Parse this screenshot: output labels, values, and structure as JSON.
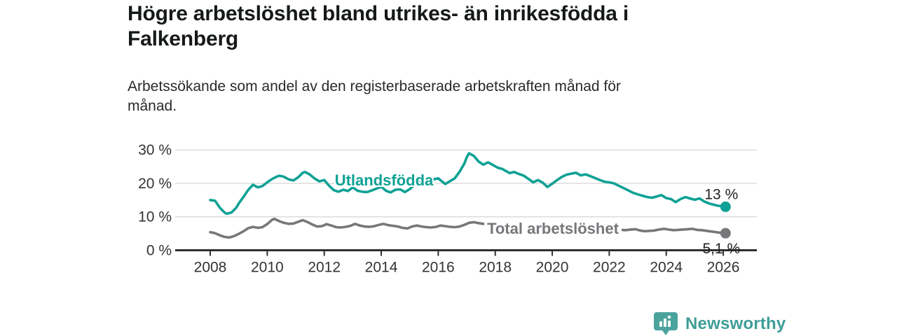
{
  "header": {
    "title": "Högre arbetslöshet bland utrikes- än inrikesfödda i\nFalkenberg",
    "subtitle": "Arbetssökande som andel av den registerbaserade arbetskraften månad för\nmånad."
  },
  "footer": {
    "brand": "Newsworthy",
    "brand_color": "#3f9e97",
    "icon_color": "#4aa39d",
    "icon": "newsworthy-bar-chart-bubble-icon"
  },
  "chart_data": {
    "type": "line",
    "title": "Högre arbetslöshet bland utrikes- än inrikesfödda i Falkenberg",
    "subtitle": "Arbetssökande som andel av den registerbaserade arbetskraften månad för månad.",
    "xlabel": "",
    "ylabel": "",
    "x_axis": {
      "ticks": [
        2008,
        2010,
        2012,
        2014,
        2016,
        2018,
        2020,
        2022,
        2024,
        2026
      ],
      "tick_labels": [
        "2008",
        "2010",
        "2012",
        "2014",
        "2016",
        "2018",
        "2020",
        "2022",
        "2024",
        "2026"
      ],
      "range": [
        2006.8,
        2027.2
      ]
    },
    "y_axis": {
      "ticks": [
        0,
        10,
        20,
        30
      ],
      "tick_labels": [
        "0 %",
        "10 %",
        "20 %",
        "30 %"
      ],
      "range": [
        0,
        30
      ],
      "grid": true
    },
    "colors": {
      "axis": "#2f2f2f",
      "grid": "#d9d9d9",
      "tick_text": "#333333",
      "annotation_text": "#222222"
    },
    "series": [
      {
        "name": "Utlandsfödda",
        "color": "#0fa195",
        "end_label": "13 %",
        "points": [
          [
            2008.0,
            15.0
          ],
          [
            2008.17,
            14.8
          ],
          [
            2008.33,
            12.8
          ],
          [
            2008.5,
            11.3
          ],
          [
            2008.58,
            10.9
          ],
          [
            2008.75,
            11.3
          ],
          [
            2008.92,
            12.8
          ],
          [
            2009.0,
            14.0
          ],
          [
            2009.17,
            16.0
          ],
          [
            2009.33,
            18.0
          ],
          [
            2009.5,
            19.6
          ],
          [
            2009.67,
            18.8
          ],
          [
            2009.83,
            19.2
          ],
          [
            2010.0,
            20.3
          ],
          [
            2010.17,
            21.3
          ],
          [
            2010.33,
            22.0
          ],
          [
            2010.42,
            22.3
          ],
          [
            2010.58,
            22.0
          ],
          [
            2010.75,
            21.2
          ],
          [
            2010.92,
            20.9
          ],
          [
            2011.08,
            21.8
          ],
          [
            2011.25,
            23.2
          ],
          [
            2011.33,
            23.4
          ],
          [
            2011.5,
            22.6
          ],
          [
            2011.67,
            21.4
          ],
          [
            2011.83,
            20.6
          ],
          [
            2012.0,
            21.0
          ],
          [
            2012.17,
            19.3
          ],
          [
            2012.33,
            18.0
          ],
          [
            2012.5,
            17.5
          ],
          [
            2012.67,
            18.1
          ],
          [
            2012.83,
            17.7
          ],
          [
            2013.0,
            18.8
          ],
          [
            2013.17,
            17.8
          ],
          [
            2013.33,
            17.5
          ],
          [
            2013.5,
            17.4
          ],
          [
            2013.67,
            17.9
          ],
          [
            2013.83,
            18.4
          ],
          [
            2014.0,
            19.0
          ],
          [
            2014.17,
            17.8
          ],
          [
            2014.33,
            17.3
          ],
          [
            2014.5,
            18.1
          ],
          [
            2014.67,
            18.2
          ],
          [
            2014.83,
            17.4
          ],
          [
            2015.0,
            18.3
          ],
          [
            2015.17,
            19.6
          ],
          [
            2015.33,
            20.4
          ],
          [
            2015.5,
            20.9
          ],
          [
            2015.67,
            21.0
          ],
          [
            2015.83,
            21.2
          ],
          [
            2016.0,
            21.5
          ],
          [
            2016.17,
            20.3
          ],
          [
            2016.25,
            19.8
          ],
          [
            2016.42,
            20.7
          ],
          [
            2016.58,
            21.5
          ],
          [
            2016.75,
            23.5
          ],
          [
            2016.92,
            26.0
          ],
          [
            2017.0,
            27.8
          ],
          [
            2017.08,
            29.0
          ],
          [
            2017.25,
            28.2
          ],
          [
            2017.42,
            26.5
          ],
          [
            2017.58,
            25.6
          ],
          [
            2017.75,
            26.3
          ],
          [
            2017.92,
            25.5
          ],
          [
            2018.08,
            24.7
          ],
          [
            2018.25,
            24.3
          ],
          [
            2018.5,
            23.1
          ],
          [
            2018.67,
            23.4
          ],
          [
            2018.83,
            22.8
          ],
          [
            2019.0,
            22.3
          ],
          [
            2019.17,
            21.3
          ],
          [
            2019.33,
            20.3
          ],
          [
            2019.5,
            21.0
          ],
          [
            2019.67,
            20.2
          ],
          [
            2019.83,
            18.9
          ],
          [
            2020.0,
            19.9
          ],
          [
            2020.17,
            21.0
          ],
          [
            2020.33,
            21.9
          ],
          [
            2020.5,
            22.6
          ],
          [
            2020.67,
            22.9
          ],
          [
            2020.83,
            23.2
          ],
          [
            2021.0,
            22.4
          ],
          [
            2021.17,
            22.7
          ],
          [
            2021.33,
            22.2
          ],
          [
            2021.5,
            21.6
          ],
          [
            2021.67,
            21.0
          ],
          [
            2021.83,
            20.5
          ],
          [
            2022.0,
            20.3
          ],
          [
            2022.17,
            20.0
          ],
          [
            2022.33,
            19.3
          ],
          [
            2022.5,
            18.6
          ],
          [
            2022.67,
            17.9
          ],
          [
            2022.83,
            17.2
          ],
          [
            2023.0,
            16.7
          ],
          [
            2023.17,
            16.3
          ],
          [
            2023.33,
            15.9
          ],
          [
            2023.5,
            15.7
          ],
          [
            2023.67,
            16.1
          ],
          [
            2023.83,
            16.5
          ],
          [
            2024.0,
            15.6
          ],
          [
            2024.17,
            15.3
          ],
          [
            2024.33,
            14.4
          ],
          [
            2024.5,
            15.3
          ],
          [
            2024.67,
            15.9
          ],
          [
            2024.83,
            15.5
          ],
          [
            2025.0,
            15.1
          ],
          [
            2025.17,
            15.5
          ],
          [
            2025.33,
            14.6
          ],
          [
            2025.5,
            14.0
          ],
          [
            2025.67,
            13.6
          ],
          [
            2025.83,
            13.3
          ],
          [
            2026.0,
            13.1
          ],
          [
            2026.08,
            13.0
          ]
        ]
      },
      {
        "name": "Total arbetslöshet",
        "color": "#77777b",
        "end_label": "5,1 %",
        "points": [
          [
            2008.0,
            5.4
          ],
          [
            2008.17,
            5.1
          ],
          [
            2008.33,
            4.5
          ],
          [
            2008.5,
            4.0
          ],
          [
            2008.67,
            3.8
          ],
          [
            2008.83,
            4.2
          ],
          [
            2009.0,
            4.9
          ],
          [
            2009.17,
            5.7
          ],
          [
            2009.33,
            6.6
          ],
          [
            2009.5,
            7.0
          ],
          [
            2009.67,
            6.7
          ],
          [
            2009.83,
            6.9
          ],
          [
            2010.0,
            7.8
          ],
          [
            2010.17,
            9.1
          ],
          [
            2010.25,
            9.4
          ],
          [
            2010.42,
            8.7
          ],
          [
            2010.58,
            8.2
          ],
          [
            2010.75,
            7.9
          ],
          [
            2010.92,
            8.0
          ],
          [
            2011.08,
            8.5
          ],
          [
            2011.25,
            9.0
          ],
          [
            2011.42,
            8.4
          ],
          [
            2011.58,
            7.7
          ],
          [
            2011.75,
            7.1
          ],
          [
            2011.92,
            7.2
          ],
          [
            2012.08,
            7.8
          ],
          [
            2012.25,
            7.4
          ],
          [
            2012.42,
            6.9
          ],
          [
            2012.58,
            6.8
          ],
          [
            2012.75,
            7.0
          ],
          [
            2012.92,
            7.3
          ],
          [
            2013.08,
            7.9
          ],
          [
            2013.25,
            7.4
          ],
          [
            2013.42,
            7.1
          ],
          [
            2013.58,
            7.0
          ],
          [
            2013.75,
            7.2
          ],
          [
            2013.92,
            7.6
          ],
          [
            2014.08,
            7.9
          ],
          [
            2014.25,
            7.5
          ],
          [
            2014.42,
            7.3
          ],
          [
            2014.58,
            7.1
          ],
          [
            2014.75,
            6.7
          ],
          [
            2014.92,
            6.5
          ],
          [
            2015.08,
            7.1
          ],
          [
            2015.25,
            7.4
          ],
          [
            2015.42,
            7.1
          ],
          [
            2015.58,
            6.9
          ],
          [
            2015.75,
            6.8
          ],
          [
            2015.92,
            7.0
          ],
          [
            2016.08,
            7.4
          ],
          [
            2016.25,
            7.2
          ],
          [
            2016.42,
            7.0
          ],
          [
            2016.58,
            6.9
          ],
          [
            2016.75,
            7.1
          ],
          [
            2016.92,
            7.6
          ],
          [
            2017.08,
            8.2
          ],
          [
            2017.25,
            8.4
          ],
          [
            2017.42,
            8.1
          ],
          [
            2017.58,
            7.9
          ],
          [
            2017.75,
            7.9
          ],
          [
            2017.92,
            7.7
          ],
          [
            2018.08,
            7.6
          ],
          [
            2018.25,
            7.4
          ],
          [
            2018.42,
            7.2
          ],
          [
            2018.58,
            6.9
          ],
          [
            2018.75,
            6.7
          ],
          [
            2018.92,
            6.8
          ],
          [
            2019.08,
            6.7
          ],
          [
            2019.25,
            6.5
          ],
          [
            2019.42,
            6.3
          ],
          [
            2019.58,
            6.2
          ],
          [
            2019.75,
            6.4
          ],
          [
            2019.92,
            6.6
          ],
          [
            2020.08,
            7.0
          ],
          [
            2020.25,
            7.5
          ],
          [
            2020.42,
            7.8
          ],
          [
            2020.58,
            7.7
          ],
          [
            2020.75,
            7.5
          ],
          [
            2020.92,
            7.4
          ],
          [
            2021.08,
            7.2
          ],
          [
            2021.25,
            7.0
          ],
          [
            2021.42,
            6.8
          ],
          [
            2021.58,
            6.6
          ],
          [
            2021.75,
            6.4
          ],
          [
            2021.92,
            6.4
          ],
          [
            2022.08,
            6.5
          ],
          [
            2022.25,
            6.3
          ],
          [
            2022.42,
            6.1
          ],
          [
            2022.58,
            6.0
          ],
          [
            2022.75,
            6.2
          ],
          [
            2022.92,
            6.3
          ],
          [
            2023.08,
            5.9
          ],
          [
            2023.25,
            5.7
          ],
          [
            2023.42,
            5.8
          ],
          [
            2023.58,
            5.9
          ],
          [
            2023.75,
            6.2
          ],
          [
            2023.92,
            6.4
          ],
          [
            2024.08,
            6.2
          ],
          [
            2024.25,
            6.0
          ],
          [
            2024.42,
            6.1
          ],
          [
            2024.58,
            6.2
          ],
          [
            2024.75,
            6.3
          ],
          [
            2024.92,
            6.4
          ],
          [
            2025.08,
            6.1
          ],
          [
            2025.25,
            6.0
          ],
          [
            2025.42,
            5.8
          ],
          [
            2025.58,
            5.6
          ],
          [
            2025.75,
            5.4
          ],
          [
            2025.92,
            5.2
          ],
          [
            2026.08,
            5.1
          ]
        ]
      }
    ],
    "legend_position": "inline-labels"
  }
}
